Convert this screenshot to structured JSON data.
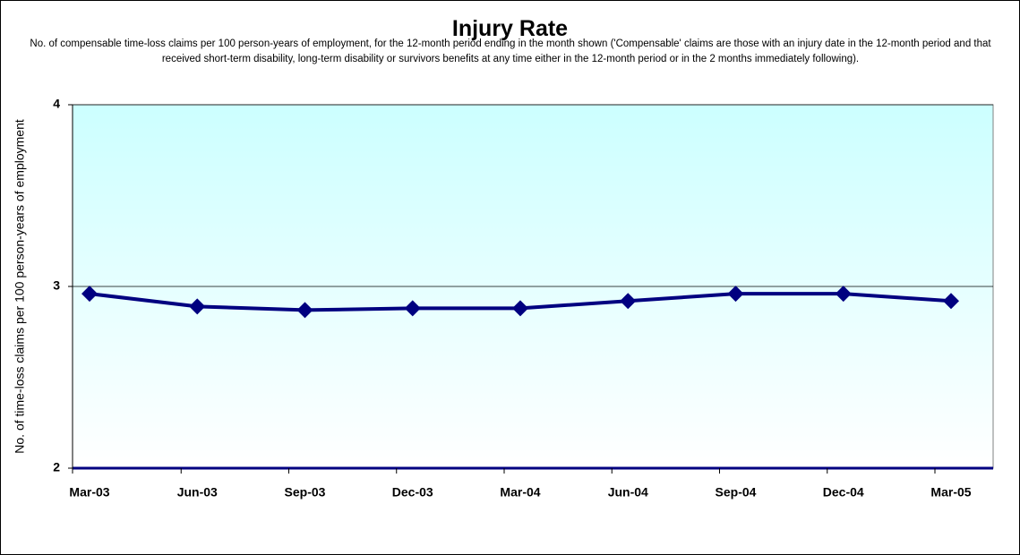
{
  "chart_data": {
    "type": "line",
    "title": "Injury Rate",
    "subtitle": "No. of compensable time-loss claims per 100 person-years of employment, for the 12-month period ending in the month shown ('Compensable' claims are those with an injury date in the 12-month period and that received short-term disability, long-term disability or survivors benefits at any time either in the 12-month period or in the 2 months immediately following).",
    "y_label": "No. of time-loss claims per 100 person-years of employment",
    "categories": [
      "Mar-03",
      "Jun-03",
      "Sep-03",
      "Dec-03",
      "Mar-04",
      "Jun-04",
      "Sep-04",
      "Dec-04",
      "Mar-05"
    ],
    "series": [
      {
        "name": "Injury Rate",
        "color": "#000080",
        "values": [
          2.96,
          2.89,
          2.87,
          2.88,
          2.88,
          2.92,
          2.96,
          2.96,
          2.92
        ]
      }
    ],
    "ylim": [
      2,
      4
    ],
    "yticks": [
      2,
      3,
      4
    ],
    "grid": true
  }
}
